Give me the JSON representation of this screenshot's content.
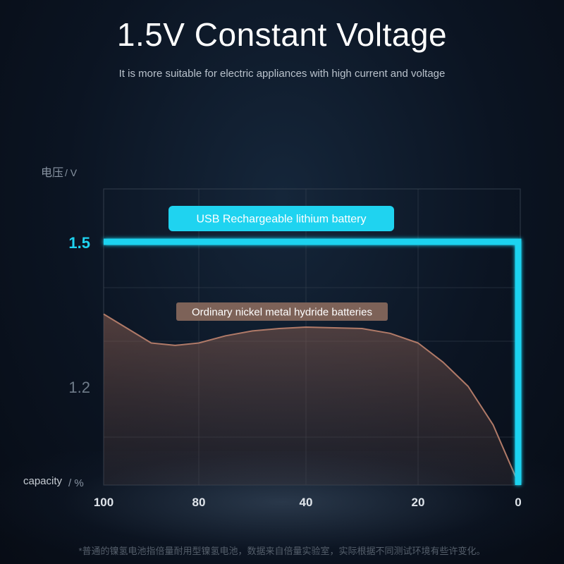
{
  "title": "1.5V Constant Voltage",
  "subtitle": "It is more suitable for electric appliances with high current and voltage",
  "footnote": "*普通的镍氢电池指倍量耐用型镍氢电池，数据来自倍量实验室，实际根据不同测试环境有些许变化。",
  "chart_data": {
    "type": "line",
    "ylabel": "电压",
    "ylabel_unit": "/ V",
    "xlabel": "capacity",
    "xlabel_unit": "/ %",
    "x_ticks": [
      100,
      80,
      40,
      20,
      0
    ],
    "y_ticks": [
      1.5,
      1.2
    ],
    "x_direction": "descending",
    "grid": true,
    "series": [
      {
        "name": "USB Rechargeable lithium battery",
        "color": "#1fd3f0",
        "points": [
          [
            100,
            1.5
          ],
          [
            0,
            1.5
          ],
          [
            0,
            1.0
          ]
        ]
      },
      {
        "name": "Ordinary nickel metal hydride batteries",
        "color": "#b07a68",
        "fill": true,
        "points": [
          [
            100,
            1.35
          ],
          [
            95,
            1.32
          ],
          [
            90,
            1.29
          ],
          [
            85,
            1.285
          ],
          [
            80,
            1.29
          ],
          [
            70,
            1.305
          ],
          [
            60,
            1.315
          ],
          [
            50,
            1.32
          ],
          [
            40,
            1.323
          ],
          [
            30,
            1.32
          ],
          [
            25,
            1.31
          ],
          [
            20,
            1.29
          ],
          [
            15,
            1.25
          ],
          [
            10,
            1.2
          ],
          [
            5,
            1.12
          ],
          [
            0,
            1.0
          ]
        ]
      }
    ]
  },
  "colors": {
    "accent": "#1fd3f0",
    "nimh_label_bg": "#7d6258",
    "grid": "#3a4654"
  }
}
